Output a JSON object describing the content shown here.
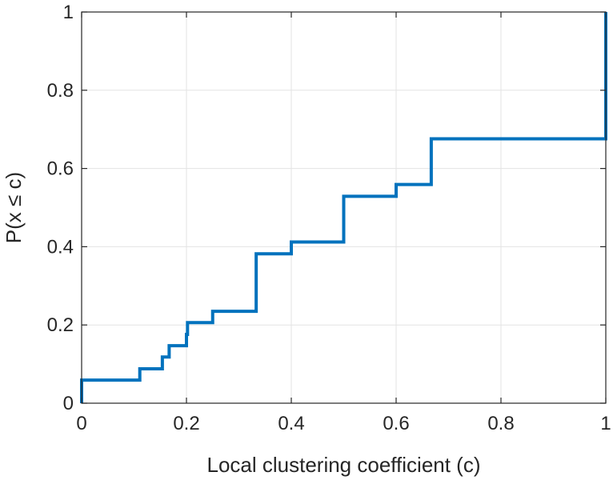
{
  "chart_data": {
    "type": "line",
    "step": true,
    "title": "",
    "xlabel": "Local clustering coefficient (c)",
    "ylabel": "P(x ≤ c)",
    "xlim": [
      0,
      1
    ],
    "ylim": [
      0,
      1
    ],
    "grid": true,
    "x_ticks": [
      0,
      0.2,
      0.4,
      0.6,
      0.8,
      1
    ],
    "y_ticks": [
      0,
      0.2,
      0.4,
      0.6,
      0.8,
      1
    ],
    "x_tick_labels": [
      "0",
      "0.2",
      "0.4",
      "0.6",
      "0.8",
      "1"
    ],
    "y_tick_labels": [
      "0",
      "0.2",
      "0.4",
      "0.6",
      "0.8",
      "1"
    ],
    "series_color": "#0072BD",
    "series": [
      {
        "x": [
          0,
          0,
          0.111,
          0.111,
          0.154,
          0.154,
          0.167,
          0.167,
          0.2,
          0.2,
          0.202,
          0.202,
          0.25,
          0.25,
          0.333,
          0.333,
          0.4,
          0.4,
          0.5,
          0.5,
          0.6,
          0.6,
          0.667,
          0.667,
          1,
          1
        ],
        "y": [
          0,
          0.059,
          0.059,
          0.088,
          0.088,
          0.118,
          0.118,
          0.147,
          0.147,
          0.176,
          0.176,
          0.206,
          0.206,
          0.235,
          0.235,
          0.382,
          0.382,
          0.412,
          0.412,
          0.529,
          0.529,
          0.559,
          0.559,
          0.676,
          0.676,
          1
        ]
      }
    ]
  }
}
